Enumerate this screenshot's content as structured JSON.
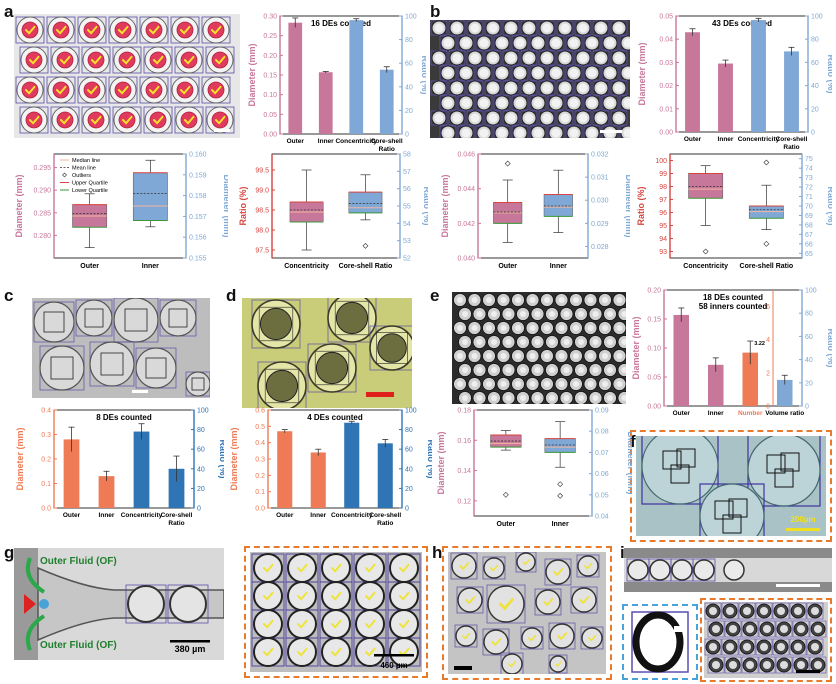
{
  "panel_labels": [
    "a",
    "b",
    "c",
    "d",
    "e",
    "f",
    "g",
    "h",
    "i"
  ],
  "colors": {
    "pink": "#c7779a",
    "blue": "#7fa8d6",
    "orange": "#ee7b55",
    "darkblue": "#2f74b5",
    "red": "#d6453f",
    "teal": "#5fa89a"
  },
  "legend_items": [
    "Median line",
    "Mean line",
    "Outliers",
    "Upper Quartile",
    "Lower Quartile"
  ],
  "scale_bars": {
    "f": "200µm",
    "g": "380 µm",
    "g2": "460 µm"
  },
  "g_labels": {
    "top": "Outer Fluid (OF)",
    "bottom": "Outer Fluid (OF)"
  },
  "chart_data": [
    {
      "id": "a_bar",
      "type": "bar",
      "title": "16 DEs counted",
      "categories": [
        "Outer",
        "Inner",
        "Concentricity",
        "Core-shell Ratio"
      ],
      "values": [
        0.283,
        0.157,
        96.5,
        54.5
      ],
      "errors": [
        0.012,
        0.002,
        1.2,
        2.5
      ],
      "axis": [
        "left",
        "left",
        "right",
        "right"
      ],
      "ylabel": "Diameter (mm)",
      "y2label": "Ratio (%)",
      "ylim": [
        0,
        0.3
      ],
      "y2lim": [
        0,
        100
      ],
      "yticks": [
        "0.00",
        "0.05",
        "0.10",
        "0.15",
        "0.20",
        "0.25",
        "0.30"
      ],
      "y2ticks": [
        "0",
        "20",
        "40",
        "60",
        "80",
        "100"
      ]
    },
    {
      "id": "b_bar",
      "type": "bar",
      "title": "43 DEs counted",
      "categories": [
        "Outer",
        "Inner",
        "Concentricity",
        "Core-shell Ratio"
      ],
      "values": [
        0.043,
        0.0295,
        96.5,
        69.5
      ],
      "errors": [
        0.0015,
        0.0015,
        1.5,
        3.5
      ],
      "axis": [
        "left",
        "left",
        "right",
        "right"
      ],
      "ylabel": "Diameter (mm)",
      "y2label": "Ratio (%)",
      "ylim": [
        0,
        0.05
      ],
      "y2lim": [
        0,
        100
      ],
      "yticks": [
        "0.00",
        "0.01",
        "0.02",
        "0.03",
        "0.04",
        "0.05"
      ],
      "y2ticks": [
        "0",
        "20",
        "40",
        "60",
        "80",
        "100"
      ]
    },
    {
      "id": "a_box1",
      "type": "box",
      "categories": [
        "Outer",
        "Inner"
      ],
      "axis": [
        "left",
        "right"
      ],
      "ylabel": "Diameter (mm)",
      "y2label": "Diameter (mm)",
      "ylim": [
        0.275,
        0.298
      ],
      "y2lim": [
        0.155,
        0.16
      ],
      "yticks": [
        "0.280",
        "0.285",
        "0.290",
        "0.295"
      ],
      "y2ticks": [
        "0.155",
        "0.156",
        "0.157",
        "0.158",
        "0.159",
        "0.160"
      ],
      "boxes": [
        {
          "min": 0.2773,
          "q1": 0.2818,
          "median": 0.2843,
          "mean": 0.2848,
          "q3": 0.2868,
          "max": 0.2892,
          "outliers": []
        },
        {
          "min": 0.1565,
          "q1": 0.1568,
          "median": 0.1575,
          "mean": 0.1581,
          "q3": 0.1591,
          "max": 0.1597,
          "outliers": []
        }
      ],
      "colors": [
        "#c7779a",
        "#7fa8d6"
      ]
    },
    {
      "id": "a_box2",
      "type": "box",
      "categories": [
        "Concentricity",
        "Core-shell Ratio"
      ],
      "axis": [
        "left",
        "right"
      ],
      "ylabel": "Ratio (%)",
      "y2label": "Ratio (%)",
      "ylim": [
        97.3,
        99.9
      ],
      "y2lim": [
        52,
        58
      ],
      "yticks": [
        "97.5",
        "98.0",
        "98.5",
        "99.0",
        "99.5"
      ],
      "y2ticks": [
        "52",
        "53",
        "54",
        "55",
        "56",
        "57",
        "58"
      ],
      "boxes": [
        {
          "min": 97.5,
          "q1": 98.2,
          "median": 98.45,
          "mean": 98.5,
          "q3": 98.7,
          "max": 99.5,
          "outliers": []
        },
        {
          "min": 54.2,
          "q1": 54.6,
          "median": 54.9,
          "mean": 55.15,
          "q3": 55.8,
          "max": 56.8,
          "outliers": [
            52.7
          ]
        }
      ],
      "colors": [
        "#c7779a",
        "#7fa8d6"
      ]
    },
    {
      "id": "b_box1",
      "type": "box",
      "categories": [
        "Outer",
        "Inner"
      ],
      "axis": [
        "left",
        "right"
      ],
      "ylabel": "Diameter (mm)",
      "y2label": "Diameter (mm)",
      "ylim": [
        0.04,
        0.046
      ],
      "y2lim": [
        0.0275,
        0.032
      ],
      "yticks": [
        "0.040",
        "0.042",
        "0.044",
        "0.046"
      ],
      "y2ticks": [
        "0.028",
        "0.029",
        "0.030",
        "0.031",
        "0.032"
      ],
      "boxes": [
        {
          "min": 0.0409,
          "q1": 0.042,
          "median": 0.0426,
          "mean": 0.04265,
          "q3": 0.0432,
          "max": 0.0445,
          "outliers": [
            0.04545
          ]
        },
        {
          "min": 0.0286,
          "q1": 0.0293,
          "median": 0.0297,
          "mean": 0.02975,
          "q3": 0.03025,
          "max": 0.0313,
          "outliers": []
        }
      ],
      "colors": [
        "#c7779a",
        "#7fa8d6"
      ]
    },
    {
      "id": "b_box2",
      "type": "box",
      "categories": [
        "Concentricity",
        "Core-shell Ratio"
      ],
      "axis": [
        "left",
        "right"
      ],
      "ylabel": "Ratio (%)",
      "y2label": "Ratio (%)",
      "ylim": [
        92.5,
        100.5
      ],
      "y2lim": [
        64.5,
        75.5
      ],
      "yticks": [
        "93",
        "94",
        "95",
        "96",
        "97",
        "98",
        "99",
        "100"
      ],
      "y2ticks": [
        "65",
        "66",
        "67",
        "68",
        "69",
        "70",
        "71",
        "72",
        "73",
        "74",
        "75"
      ],
      "boxes": [
        {
          "min": 95,
          "q1": 97.1,
          "median": 97.8,
          "mean": 98.0,
          "q3": 99.0,
          "max": 99.6,
          "outliers": [
            93.0
          ]
        },
        {
          "min": 67.5,
          "q1": 68.7,
          "median": 69.4,
          "mean": 69.6,
          "q3": 70.0,
          "max": 72.2,
          "outliers": [
            74.6,
            66.0
          ]
        }
      ],
      "colors": [
        "#c7779a",
        "#7fa8d6"
      ]
    },
    {
      "id": "c_bar",
      "type": "bar",
      "title": "8 DEs counted",
      "categories": [
        "Outer",
        "Inner",
        "Concentricity",
        "Core-shell Ratio"
      ],
      "values": [
        0.28,
        0.13,
        78,
        40
      ],
      "errors": [
        0.05,
        0.02,
        8,
        13
      ],
      "axis": [
        "left",
        "left",
        "right",
        "right"
      ],
      "ylabel": "Diameter (mm)",
      "y2label": "Ratio (%)",
      "ylim": [
        0,
        0.4
      ],
      "y2lim": [
        0,
        100
      ],
      "yticks": [
        "0.0",
        "0.1",
        "0.2",
        "0.3",
        "0.4"
      ],
      "y2ticks": [
        "0",
        "20",
        "40",
        "60",
        "80",
        "100"
      ]
    },
    {
      "id": "d_bar",
      "type": "bar",
      "title": "4 DEs counted",
      "categories": [
        "Outer",
        "Inner",
        "Concentricity",
        "Core-shell Ratio"
      ],
      "values": [
        0.47,
        0.34,
        87,
        66
      ],
      "errors": [
        0.01,
        0.02,
        1.5,
        4
      ],
      "axis": [
        "left",
        "left",
        "right",
        "right"
      ],
      "ylabel": "Diameter (mm)",
      "y2label": "Ratio (%)",
      "ylim": [
        0,
        0.6
      ],
      "y2lim": [
        0,
        100
      ],
      "yticks": [
        "0.0",
        "0.1",
        "0.2",
        "0.3",
        "0.4",
        "0.5",
        "0.6"
      ],
      "y2ticks": [
        "0",
        "20",
        "40",
        "60",
        "80",
        "100"
      ]
    },
    {
      "id": "e_bar",
      "type": "bar",
      "title": "18 DEs counted",
      "subtitle": "58 inners counted",
      "categories": [
        "Outer",
        "Inner",
        "Number",
        "Volume ratio"
      ],
      "values": [
        0.157,
        0.071,
        3.22,
        22.5
      ],
      "errors": [
        0.012,
        0.012,
        0.7,
        4
      ],
      "axis": [
        "left",
        "left",
        "mid",
        "right"
      ],
      "annotation": "3.22",
      "ylabel": "Diameter (mm)",
      "y2label": "Ratio (%)",
      "ylim": [
        0,
        0.2
      ],
      "ymidlim": [
        0,
        7
      ],
      "y2lim": [
        0,
        100
      ],
      "yticks": [
        "0.00",
        "0.05",
        "0.10",
        "0.15",
        "0.20"
      ],
      "ymidticks": [
        "0",
        "2",
        "4",
        "6"
      ],
      "y2ticks": [
        "0",
        "20",
        "40",
        "60",
        "80",
        "100"
      ]
    },
    {
      "id": "e_box",
      "type": "box",
      "categories": [
        "Outer",
        "Inner"
      ],
      "axis": [
        "left",
        "right"
      ],
      "ylabel": "Diameter (mm)",
      "y2label": "Diameter (mm)",
      "ylim": [
        0.11,
        0.18
      ],
      "y2lim": [
        0.04,
        0.09
      ],
      "yticks": [
        "0.12",
        "0.14",
        "0.16",
        "0.18"
      ],
      "y2ticks": [
        "0.04",
        "0.05",
        "0.06",
        "0.07",
        "0.08",
        "0.09"
      ],
      "boxes": [
        {
          "min": 0.1535,
          "q1": 0.1555,
          "median": 0.158,
          "mean": 0.1595,
          "q3": 0.1635,
          "max": 0.1665,
          "outliers": [
            0.124
          ]
        },
        {
          "min": 0.063,
          "q1": 0.07,
          "median": 0.0725,
          "mean": 0.0735,
          "q3": 0.0765,
          "max": 0.0845,
          "outliers": [
            0.055,
            0.0495
          ]
        }
      ],
      "colors": [
        "#c7779a",
        "#7fa8d6"
      ]
    }
  ]
}
